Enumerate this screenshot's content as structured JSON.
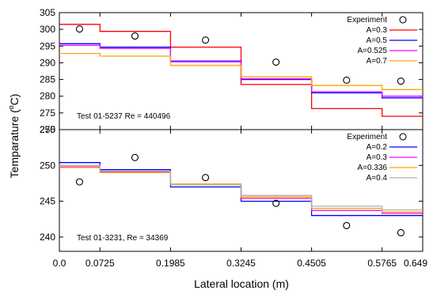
{
  "figure": {
    "ylabel": "Temparature (",
    "ylabel_unit": "C)",
    "ylabel_degree": "o",
    "xlabel": "Lateral location (m)",
    "x_ticks": [
      0.0,
      0.0725,
      0.1985,
      0.3245,
      0.4505,
      0.5765,
      0.649
    ],
    "x_tick_labels": [
      "0.0",
      "0.0725",
      "0.1985",
      "0.3245",
      "0.4505",
      "0.5765",
      "0.649"
    ]
  },
  "chart_data": [
    {
      "type": "line",
      "ylim": [
        270,
        305
      ],
      "yticks": [
        270,
        275,
        280,
        285,
        290,
        295,
        300,
        305
      ],
      "xlim": [
        0,
        0.649
      ],
      "x_edges": [
        0.0,
        0.0725,
        0.1985,
        0.3245,
        0.4505,
        0.5765,
        0.649
      ],
      "annotation": "Test 01-5237 Re = 440496",
      "legend_placement": "top-right",
      "experiment": {
        "name": "Experiment",
        "x": [
          0.036,
          0.135,
          0.261,
          0.387,
          0.513,
          0.61
        ],
        "y": [
          300.1,
          298.0,
          296.8,
          290.2,
          284.8,
          284.5
        ]
      },
      "series": [
        {
          "name": "A=0.3",
          "color": "#ff0000",
          "values": [
            301.5,
            299.4,
            294.7,
            283.5,
            276.3,
            274.0
          ]
        },
        {
          "name": "A=0.5",
          "color": "#0000ff",
          "values": [
            295.7,
            294.7,
            290.5,
            285.0,
            281.0,
            279.5
          ]
        },
        {
          "name": "A=0.525",
          "color": "#ff00ff",
          "values": [
            295.2,
            294.3,
            290.3,
            285.2,
            281.3,
            280.0
          ]
        },
        {
          "name": "A=0.7",
          "color": "#ffa500",
          "values": [
            292.8,
            292.0,
            289.2,
            285.8,
            283.2,
            282.0
          ]
        }
      ]
    },
    {
      "type": "line",
      "ylim": [
        238,
        255
      ],
      "yticks": [
        240,
        245,
        250,
        255
      ],
      "xlim": [
        0,
        0.649
      ],
      "x_edges": [
        0.0,
        0.0725,
        0.1985,
        0.3245,
        0.4505,
        0.5765,
        0.649
      ],
      "annotation": "Test 01-3231, Re = 34369",
      "legend_placement": "top-right",
      "experiment": {
        "name": "Experiment",
        "x": [
          0.036,
          0.135,
          0.261,
          0.387,
          0.513,
          0.61
        ],
        "y": [
          247.7,
          251.1,
          248.3,
          244.7,
          241.6,
          240.6
        ]
      },
      "series": [
        {
          "name": "A=0.2",
          "color": "#0000ff",
          "values": [
            250.4,
            249.4,
            247.0,
            245.0,
            243.0,
            243.0
          ]
        },
        {
          "name": "A=0.3",
          "color": "#ff00ff",
          "values": [
            249.8,
            249.1,
            247.3,
            245.4,
            243.7,
            243.3
          ]
        },
        {
          "name": "A=0.336",
          "color": "#ffa500",
          "values": [
            249.7,
            249.0,
            247.4,
            245.6,
            244.0,
            243.5
          ]
        },
        {
          "name": "A=0.4",
          "color": "#b0b0b0",
          "values": [
            250.0,
            249.2,
            247.3,
            245.8,
            244.3,
            243.8
          ]
        }
      ]
    }
  ]
}
